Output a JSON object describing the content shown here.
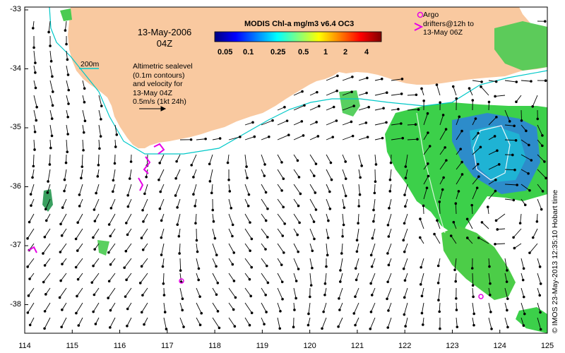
{
  "map": {
    "date_line1": "13-May-2006",
    "date_line2": "04Z",
    "colorbar_title": "MODIS Chl-a mg/m3 v6.4 OC3",
    "colorbar_ticks": [
      "0.05",
      "0.1",
      "0.25",
      "0.5",
      "1",
      "2",
      "4"
    ],
    "colorbar_colors": [
      "#00007f",
      "#0000ff",
      "#0080ff",
      "#00ffff",
      "#80ff80",
      "#ffff00",
      "#ff8000",
      "#ff0000",
      "#7f0000"
    ],
    "scale_label": "200m",
    "legend_lines": [
      "Altimetric sealevel",
      "(0.1m contours)",
      "and velocity for",
      "13-May 04Z",
      "0.5m/s (1kt 24h)"
    ],
    "argo_lines": [
      "Argo",
      "drifters@12h to",
      "13-May 06Z"
    ],
    "credit": "© IMOS 23-May-2013 12:35:10 Hobart time",
    "x_ticks": [
      "114",
      "115",
      "116",
      "117",
      "118",
      "119",
      "120",
      "121",
      "122",
      "123",
      "124",
      "125"
    ],
    "y_ticks": [
      "-33",
      "-34",
      "-35",
      "-36",
      "-37",
      "-38"
    ],
    "colors": {
      "land": "#f9c9a0",
      "ocean": "#ffffff",
      "contour": "#00c8c8",
      "drifter": "#e600e6",
      "arrow": "#000000"
    }
  }
}
